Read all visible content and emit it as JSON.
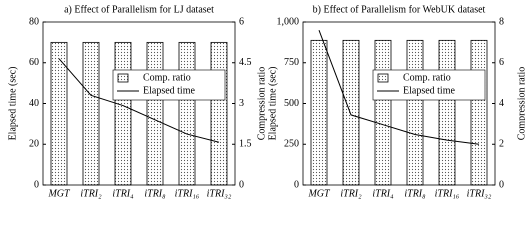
{
  "chart_data": [
    {
      "type": "bar-line",
      "title": "a) Effect of Parallelism for LJ dataset",
      "ylabel": "Elapsed time (sec)",
      "y2label": "Compression ratio",
      "categories": [
        "MGT",
        "iTRI₂",
        "iTRI₄",
        "iTRI₈",
        "iTRI₁₆",
        "iTRI₃₂"
      ],
      "series": [
        {
          "name": "Comp. ratio",
          "type": "bar",
          "axis": "y2",
          "color": "#000000",
          "values": [
            5.25,
            5.25,
            5.25,
            5.25,
            5.25,
            5.25
          ]
        },
        {
          "name": "Elapsed time",
          "type": "line",
          "color": "#000000",
          "values": [
            62,
            44,
            39,
            32,
            25,
            21
          ]
        }
      ],
      "ylim": [
        0,
        80
      ],
      "yticks": [
        0,
        20,
        40,
        60,
        80
      ],
      "y2lim": [
        0,
        6
      ],
      "y2ticks": [
        0,
        1.5,
        3,
        4.5,
        6
      ],
      "legend": "right"
    },
    {
      "type": "bar-line",
      "title": "b) Effect of Parallelism for WebUK dataset",
      "ylabel": "Elapsed time (sec)",
      "y2label": "Compression ratio",
      "categories": [
        "MGT",
        "iTRI₂",
        "iTRI₄",
        "iTRI₈",
        "iTRI₁₆",
        "iTRI₃₂"
      ],
      "series": [
        {
          "name": "Comp. ratio",
          "type": "bar",
          "axis": "y2",
          "color": "#000000",
          "values": [
            7.1,
            7.1,
            7.1,
            7.1,
            7.1,
            7.1
          ]
        },
        {
          "name": "Elapsed time",
          "type": "line",
          "color": "#000000",
          "values": [
            950,
            430,
            370,
            310,
            275,
            250
          ]
        }
      ],
      "ylim": [
        0,
        1000
      ],
      "yticks": [
        0,
        250,
        500,
        750,
        {
          "value": 1000,
          "label": "1,000"
        }
      ],
      "y2lim": [
        0,
        8
      ],
      "y2ticks": [
        0,
        2,
        4,
        6,
        8
      ],
      "legend": "right"
    }
  ]
}
